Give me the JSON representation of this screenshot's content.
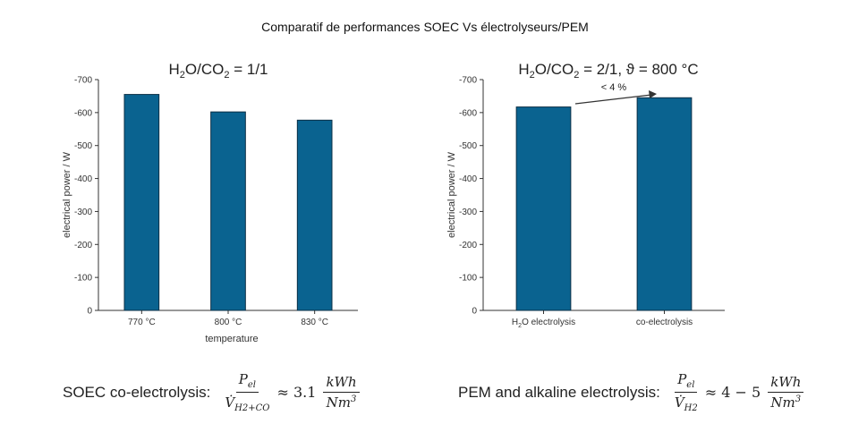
{
  "page_title": "Comparatif de performances SOEC Vs électrolyseurs/PEM",
  "colors": {
    "bar": "#0a6390",
    "bar_edge": "#0b2f45",
    "axis": "#333333"
  },
  "chart_data": [
    {
      "type": "bar",
      "title": "H2O/CO2 = 1/1",
      "xlabel": "temperature",
      "ylabel": "electrical power / W",
      "categories": [
        "770 °C",
        "800 °C",
        "830 °C"
      ],
      "values": [
        -655,
        -602,
        -577
      ],
      "ylim": [
        0,
        -700
      ],
      "yticks": [
        "-700",
        "-600",
        "-500",
        "-400",
        "-300",
        "-200",
        "-100",
        "0"
      ],
      "grid": false
    },
    {
      "type": "bar",
      "title": "H2O/CO2 = 2/1, ϑ = 800 °C",
      "xlabel": "",
      "ylabel": "electrical power / W",
      "categories": [
        "H2O electrolysis",
        "co-electrolysis"
      ],
      "values": [
        -617,
        -645
      ],
      "ylim": [
        0,
        -700
      ],
      "yticks": [
        "-700",
        "-600",
        "-500",
        "-400",
        "-300",
        "-200",
        "-100",
        "0"
      ],
      "annotation": "< 4 %",
      "grid": false
    }
  ],
  "formulas": {
    "left_label": "SOEC co-electrolysis:",
    "right_label": "PEM and alkaline electrolysis:",
    "numerator": "P",
    "numerator_sub": "el",
    "denominator_left_sub": "H2+CO",
    "denominator_right_sub": "H2",
    "left_value": "3.1",
    "right_value": "4 − 5",
    "unit_num": "kWh",
    "unit_den": "Nm"
  }
}
